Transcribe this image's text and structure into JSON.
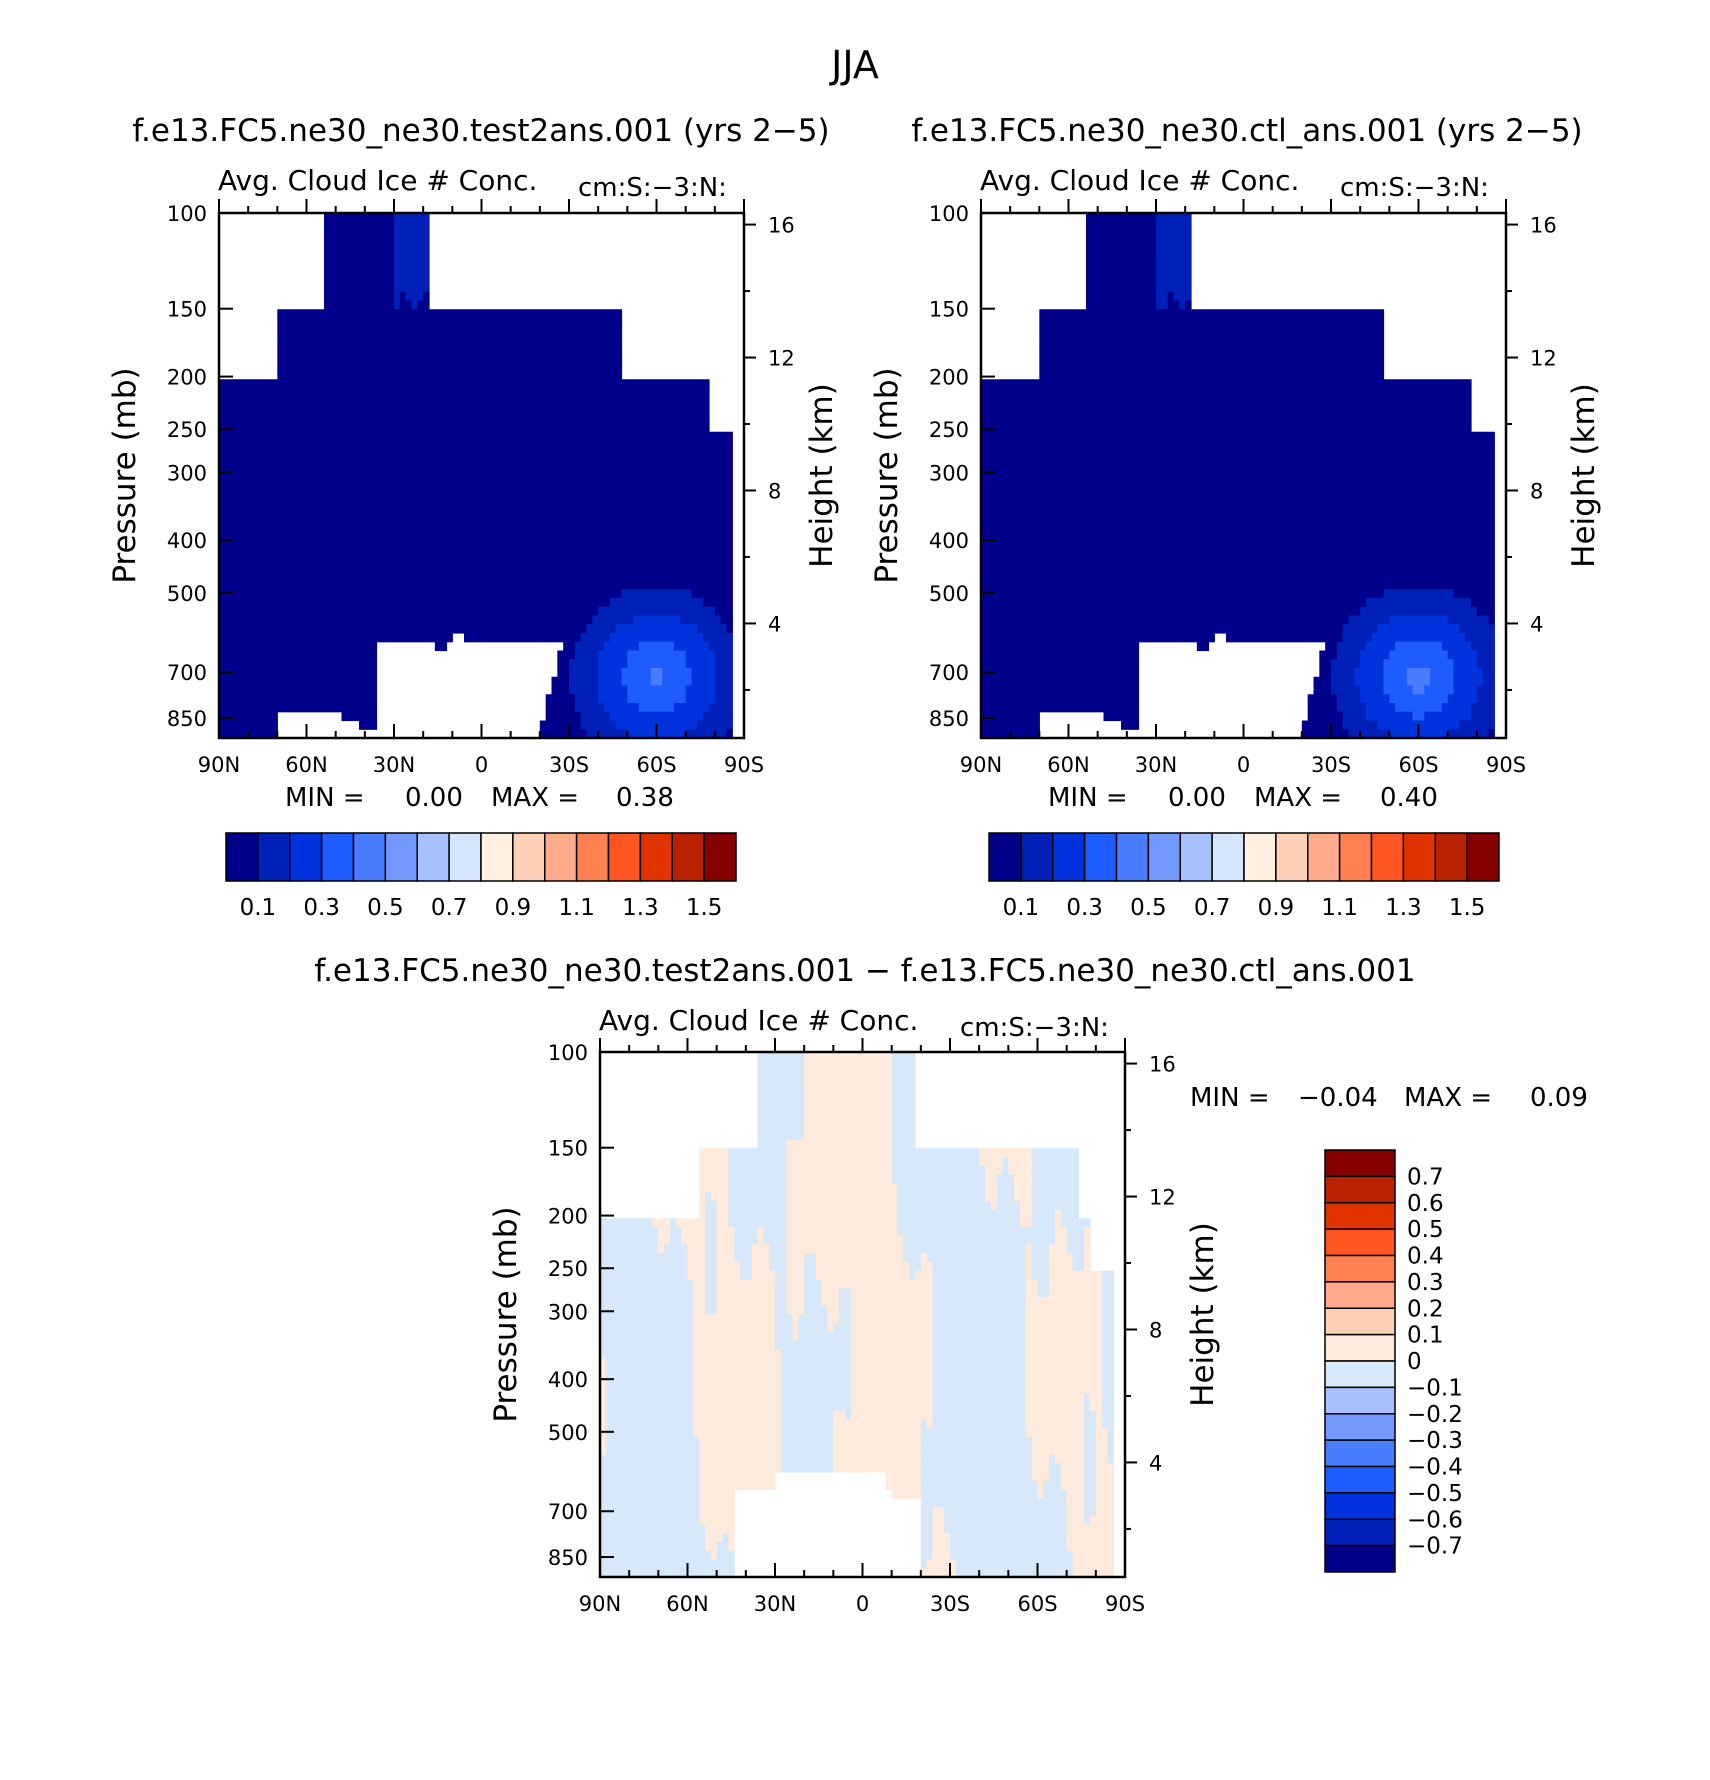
{
  "figure_title": "JJA",
  "colors": {
    "full_scale": [
      "#00008b",
      "#0020b8",
      "#0033dd",
      "#1f5cff",
      "#4a7cff",
      "#7399ff",
      "#a8c1ff",
      "#d6e6ff",
      "#fff0e0",
      "#ffd0b8",
      "#ffaa8a",
      "#ff8050",
      "#ff5522",
      "#e03300",
      "#b82200",
      "#870000"
    ],
    "diff_scale": [
      "#00008b",
      "#0020b8",
      "#0033dd",
      "#1f5cff",
      "#4a7cff",
      "#7399ff",
      "#a8c1ff",
      "#d6e8fa",
      "#ffeadb",
      "#ffd0b8",
      "#ffaa8a",
      "#ff8050",
      "#ff5522",
      "#e03300",
      "#b82200",
      "#870000"
    ],
    "missing": "#ffffff"
  },
  "chart_data": [
    {
      "type": "heatmap",
      "id": "test",
      "header": "f.e13.FC5.ne30_ne30.test2ans.001 (yrs 2−5)",
      "title": "Avg. Cloud Ice # Conc.",
      "units": "cm:S:−3:N:",
      "xlabel": "",
      "ylabel": "Pressure (mb)",
      "ylabel_right": "Height (km)",
      "x_ticks": [
        "90N",
        "60N",
        "30N",
        "0",
        "30S",
        "60S",
        "90S"
      ],
      "y_ticks": [
        100,
        150,
        200,
        250,
        300,
        400,
        500,
        700,
        850
      ],
      "y_ticks_right": [
        16,
        12,
        8,
        4
      ],
      "xlim": [
        90,
        -90
      ],
      "ylim": [
        100,
        925
      ],
      "log_scale_y": true,
      "min_label": "MIN =",
      "min_value": "0.00",
      "max_label": "MAX =",
      "max_value": "0.38",
      "colorbar_labels": [
        "0.1",
        "0.3",
        "0.5",
        "0.7",
        "0.9",
        "1.1",
        "1.3",
        "1.5"
      ],
      "missing_regions": [
        {
          "lat": [
            90,
            54
          ],
          "p": [
            100,
            150
          ]
        },
        {
          "lat": [
            90,
            69
          ],
          "p": [
            150,
            200
          ]
        },
        {
          "lat": [
            18,
            -90
          ],
          "p": [
            100,
            150
          ]
        },
        {
          "lat": [
            -48,
            -90
          ],
          "p": [
            150,
            200
          ]
        },
        {
          "lat": [
            -78,
            -90
          ],
          "p": [
            200,
            250
          ]
        },
        {
          "lat": [
            -90,
            -95
          ],
          "p": [
            250,
            925
          ]
        }
      ],
      "features": [
        {
          "name": "upper-band",
          "lat_center": 14,
          "p_center": 120,
          "value": 0.12
        },
        {
          "name": "southern-maximum",
          "lat_center": -60,
          "p_center": 720,
          "value": 0.38
        }
      ]
    },
    {
      "type": "heatmap",
      "id": "ctl",
      "header": "f.e13.FC5.ne30_ne30.ctl_ans.001 (yrs 2−5)",
      "title": "Avg. Cloud Ice # Conc.",
      "units": "cm:S:−3:N:",
      "xlabel": "",
      "ylabel": "Pressure (mb)",
      "ylabel_right": "Height (km)",
      "x_ticks": [
        "90N",
        "60N",
        "30N",
        "0",
        "30S",
        "60S",
        "90S"
      ],
      "y_ticks": [
        100,
        150,
        200,
        250,
        300,
        400,
        500,
        700,
        850
      ],
      "y_ticks_right": [
        16,
        12,
        8,
        4
      ],
      "xlim": [
        90,
        -90
      ],
      "ylim": [
        100,
        925
      ],
      "log_scale_y": true,
      "min_label": "MIN =",
      "min_value": "0.00",
      "max_label": "MAX =",
      "max_value": "0.40",
      "colorbar_labels": [
        "0.1",
        "0.3",
        "0.5",
        "0.7",
        "0.9",
        "1.1",
        "1.3",
        "1.5"
      ],
      "features": [
        {
          "name": "upper-band",
          "lat_center": 14,
          "p_center": 120,
          "value": 0.12
        },
        {
          "name": "southern-maximum",
          "lat_center": -60,
          "p_center": 720,
          "value": 0.4
        }
      ]
    },
    {
      "type": "heatmap",
      "id": "diff",
      "header": "f.e13.FC5.ne30_ne30.test2ans.001 − f.e13.FC5.ne30_ne30.ctl_ans.001",
      "title": "Avg. Cloud Ice # Conc.",
      "units": "cm:S:−3:N:",
      "xlabel": "",
      "ylabel": "Pressure (mb)",
      "ylabel_right": "Height (km)",
      "x_ticks": [
        "90N",
        "60N",
        "30N",
        "0",
        "30S",
        "60S",
        "90S"
      ],
      "y_ticks": [
        100,
        150,
        200,
        250,
        300,
        400,
        500,
        700,
        850
      ],
      "y_ticks_right": [
        16,
        12,
        8,
        4
      ],
      "xlim": [
        90,
        -90
      ],
      "ylim": [
        100,
        925
      ],
      "log_scale_y": true,
      "min_label": "MIN =",
      "min_value": "−0.04",
      "max_label": "MAX =",
      "max_value": "0.09",
      "colorbar_labels": [
        "0.7",
        "0.6",
        "0.5",
        "0.4",
        "0.3",
        "0.2",
        "0.1",
        "0",
        "−0.1",
        "−0.2",
        "−0.3",
        "−0.4",
        "−0.5",
        "−0.6",
        "−0.7"
      ]
    }
  ]
}
